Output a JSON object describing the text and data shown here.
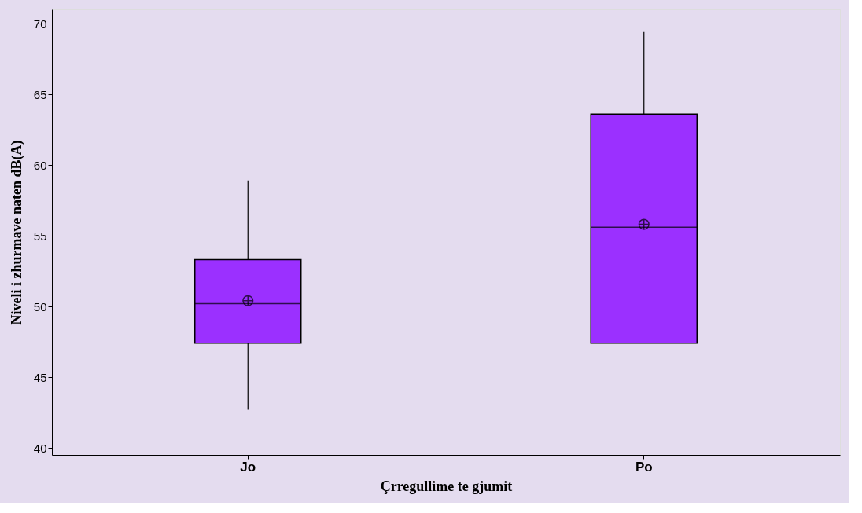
{
  "chart_data": {
    "type": "box",
    "xlabel": "Çrregullime te gjumit",
    "ylabel": "Niveli i zhurmave naten dB(A)",
    "categories": [
      "Jo",
      "Po"
    ],
    "series": [
      {
        "color": "#9b30ff",
        "boxes": [
          {
            "low": 42.7,
            "q1": 47.4,
            "median": 50.2,
            "q3": 53.3,
            "high": 58.9,
            "mean": 50.4
          },
          {
            "low": 47.4,
            "q1": 47.4,
            "median": 55.6,
            "q3": 63.6,
            "high": 69.4,
            "mean": 55.8
          }
        ]
      }
    ],
    "ylim": [
      39.5,
      71
    ],
    "yticks": [
      40,
      45,
      50,
      55,
      60,
      65,
      70
    ],
    "grid": false
  }
}
